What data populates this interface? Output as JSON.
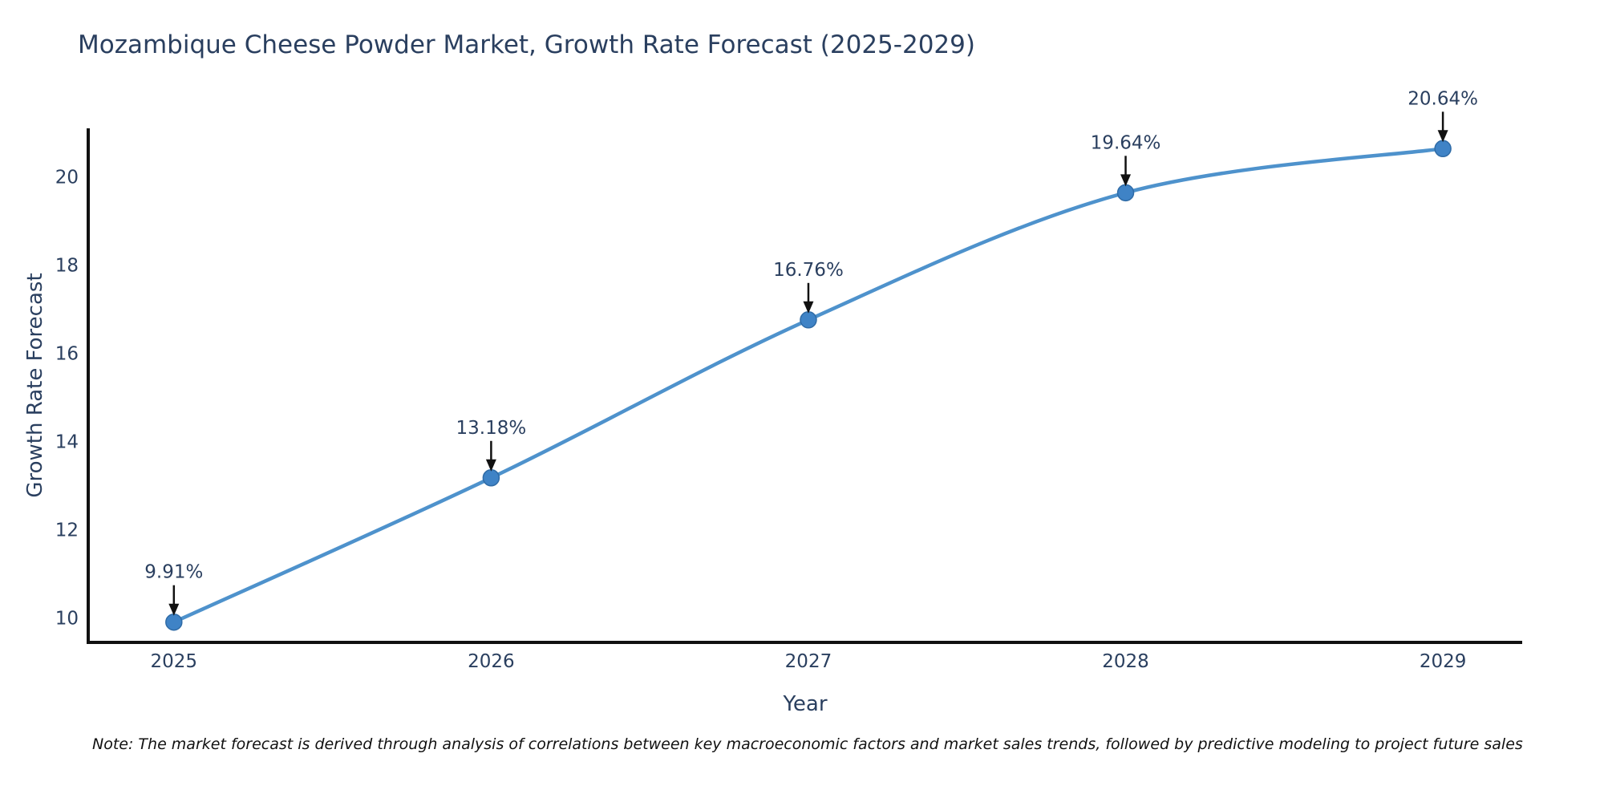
{
  "chart_data": {
    "type": "line",
    "title": "Mozambique Cheese Powder Market, Growth Rate Forecast (2025-2029)",
    "x": [
      2025,
      2026,
      2027,
      2028,
      2029
    ],
    "series": [
      {
        "name": "Growth Rate Forecast",
        "values": [
          9.91,
          13.18,
          16.76,
          19.64,
          20.64
        ],
        "point_labels": [
          "9.91%",
          "13.18%",
          "16.76%",
          "19.64%",
          "20.64%"
        ]
      }
    ],
    "xlabel": "Year",
    "ylabel": "Growth Rate Forecast",
    "xticks": [
      2025,
      2026,
      2027,
      2028,
      2029
    ],
    "yticks": [
      10,
      12,
      14,
      16,
      18,
      20
    ],
    "xlim": [
      2024.73,
      2029.25
    ],
    "ylim": [
      9.45,
      21.1
    ],
    "grid": false,
    "legend": "none",
    "line_shape": "spline",
    "colors": {
      "line": "#4e92cc",
      "marker": "#3f83c6",
      "marker_edge": "#2f6ba6",
      "text": "#2a3f5f",
      "arrow": "#111111",
      "axis": "#111111"
    }
  },
  "note": "Note: The market forecast is derived through analysis of correlations between key macroeconomic factors and market sales trends, followed by predictive modeling to project future sales"
}
